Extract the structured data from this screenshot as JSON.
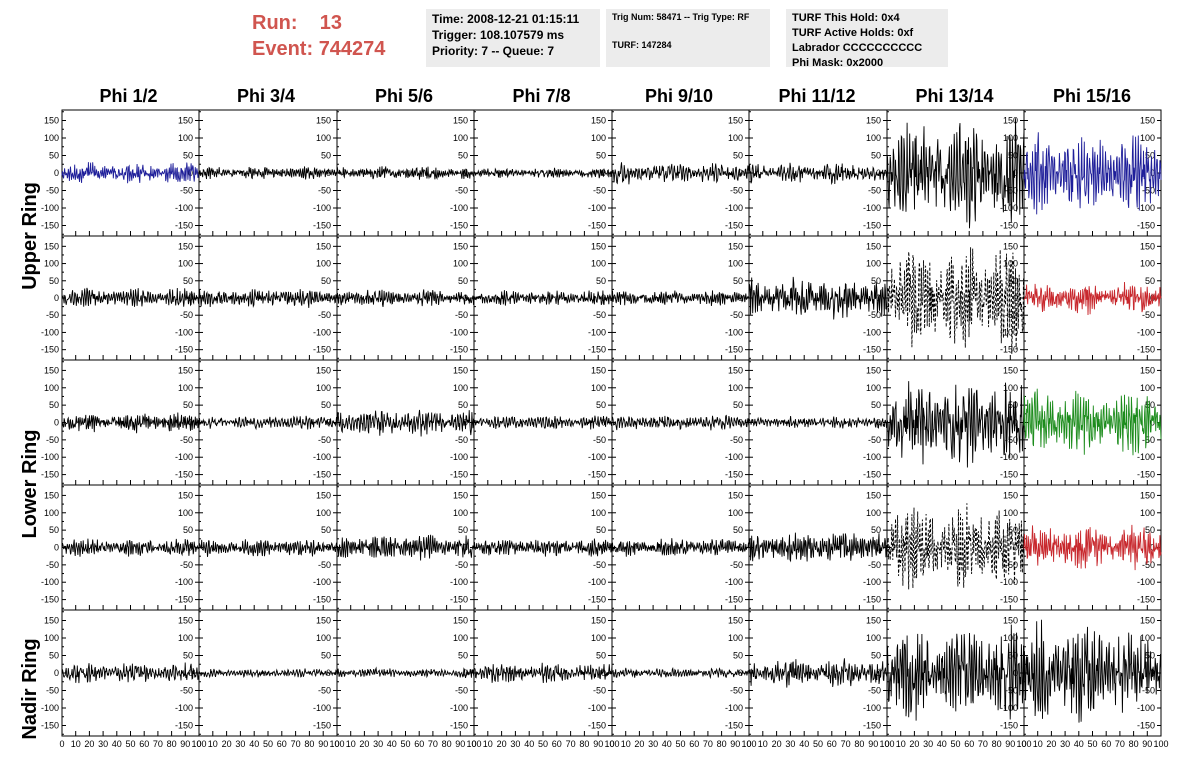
{
  "header": {
    "run_label": "Run:",
    "run_value": "13",
    "event_label": "Event:",
    "event_value": "744274",
    "run_color": "#d0554f"
  },
  "info_time": {
    "line1": "Time: 2008-12-21 01:15:11",
    "line2": "Trigger: 108.107579 ms",
    "line3": "Priority: 7 -- Queue: 7"
  },
  "info_trig": {
    "line1": "Trig Num: 58471 -- Trig Type: RF",
    "line2": "TURF: 147284"
  },
  "info_turf": {
    "line1": "TURF This Hold: 0x4",
    "line2": "TURF Active Holds: 0xf",
    "line3": "Labrador CCCCCCCCCC",
    "line4": "Phi Mask: 0x2000"
  },
  "columns": [
    "Phi 1/2",
    "Phi 3/4",
    "Phi 5/6",
    "Phi 7/8",
    "Phi 9/10",
    "Phi 11/12",
    "Phi 13/14",
    "Phi 15/16"
  ],
  "rows": [
    "Upper Ring",
    "Lower Ring",
    "Nadir Ring"
  ],
  "chart_data": {
    "type": "line",
    "ylim": [
      -180,
      180
    ],
    "xlim": [
      0,
      100
    ],
    "y_ticks": [
      -150,
      -100,
      -50,
      0,
      50,
      100,
      150
    ],
    "x_ticks": [
      0,
      10,
      20,
      30,
      40,
      50,
      60,
      70,
      80,
      90,
      100
    ],
    "x_tick_labels": [
      "0",
      "10",
      "20",
      "30",
      "40",
      "50",
      "60",
      "70",
      "80",
      "90",
      "100"
    ],
    "y_tick_labels": [
      "-150",
      "-100",
      "-50",
      "0",
      "50",
      "100",
      "150"
    ],
    "colors": {
      "black": "#000000",
      "blue": "#1f1f9a",
      "red": "#c8282d",
      "green": "#1c8c1c"
    },
    "panels": [
      {
        "row": 0,
        "col": 0,
        "color": "blue",
        "amplitude": 30,
        "style": "solid"
      },
      {
        "row": 0,
        "col": 1,
        "color": "black",
        "amplitude": 18,
        "style": "solid"
      },
      {
        "row": 0,
        "col": 2,
        "color": "black",
        "amplitude": 18,
        "style": "solid"
      },
      {
        "row": 0,
        "col": 3,
        "color": "black",
        "amplitude": 14,
        "style": "solid"
      },
      {
        "row": 0,
        "col": 4,
        "color": "black",
        "amplitude": 30,
        "style": "solid"
      },
      {
        "row": 0,
        "col": 5,
        "color": "black",
        "amplitude": 30,
        "style": "solid"
      },
      {
        "row": 0,
        "col": 6,
        "color": "black",
        "amplitude": 150,
        "style": "solid"
      },
      {
        "row": 0,
        "col": 7,
        "color": "blue",
        "amplitude": 110,
        "style": "solid"
      },
      {
        "row": 1,
        "col": 0,
        "color": "black",
        "amplitude": 28,
        "style": "solid"
      },
      {
        "row": 1,
        "col": 1,
        "color": "black",
        "amplitude": 28,
        "style": "solid"
      },
      {
        "row": 1,
        "col": 2,
        "color": "black",
        "amplitude": 25,
        "style": "solid"
      },
      {
        "row": 1,
        "col": 3,
        "color": "black",
        "amplitude": 22,
        "style": "solid"
      },
      {
        "row": 1,
        "col": 4,
        "color": "black",
        "amplitude": 22,
        "style": "solid"
      },
      {
        "row": 1,
        "col": 5,
        "color": "black",
        "amplitude": 60,
        "style": "solid"
      },
      {
        "row": 1,
        "col": 6,
        "color": "black",
        "amplitude": 150,
        "style": "dashed"
      },
      {
        "row": 1,
        "col": 7,
        "color": "red",
        "amplitude": 45,
        "style": "solid"
      },
      {
        "row": 2,
        "col": 0,
        "color": "black",
        "amplitude": 28,
        "style": "solid"
      },
      {
        "row": 2,
        "col": 1,
        "color": "black",
        "amplitude": 20,
        "style": "solid"
      },
      {
        "row": 2,
        "col": 2,
        "color": "black",
        "amplitude": 38,
        "style": "solid"
      },
      {
        "row": 2,
        "col": 3,
        "color": "black",
        "amplitude": 20,
        "style": "solid"
      },
      {
        "row": 2,
        "col": 4,
        "color": "black",
        "amplitude": 22,
        "style": "solid"
      },
      {
        "row": 2,
        "col": 5,
        "color": "black",
        "amplitude": 18,
        "style": "solid"
      },
      {
        "row": 2,
        "col": 6,
        "color": "black",
        "amplitude": 120,
        "style": "solid"
      },
      {
        "row": 2,
        "col": 7,
        "color": "green",
        "amplitude": 95,
        "style": "solid"
      },
      {
        "row": 3,
        "col": 0,
        "color": "black",
        "amplitude": 25,
        "style": "solid"
      },
      {
        "row": 3,
        "col": 1,
        "color": "black",
        "amplitude": 25,
        "style": "solid"
      },
      {
        "row": 3,
        "col": 2,
        "color": "black",
        "amplitude": 35,
        "style": "solid"
      },
      {
        "row": 3,
        "col": 3,
        "color": "black",
        "amplitude": 25,
        "style": "solid"
      },
      {
        "row": 3,
        "col": 4,
        "color": "black",
        "amplitude": 25,
        "style": "solid"
      },
      {
        "row": 3,
        "col": 5,
        "color": "black",
        "amplitude": 45,
        "style": "solid"
      },
      {
        "row": 3,
        "col": 6,
        "color": "black",
        "amplitude": 120,
        "style": "dashed"
      },
      {
        "row": 3,
        "col": 7,
        "color": "red",
        "amplitude": 60,
        "style": "solid"
      },
      {
        "row": 4,
        "col": 0,
        "color": "black",
        "amplitude": 28,
        "style": "solid"
      },
      {
        "row": 4,
        "col": 1,
        "color": "black",
        "amplitude": 12,
        "style": "solid"
      },
      {
        "row": 4,
        "col": 2,
        "color": "black",
        "amplitude": 14,
        "style": "solid"
      },
      {
        "row": 4,
        "col": 3,
        "color": "black",
        "amplitude": 28,
        "style": "solid"
      },
      {
        "row": 4,
        "col": 4,
        "color": "black",
        "amplitude": 14,
        "style": "solid"
      },
      {
        "row": 4,
        "col": 5,
        "color": "black",
        "amplitude": 40,
        "style": "solid"
      },
      {
        "row": 4,
        "col": 6,
        "color": "black",
        "amplitude": 130,
        "style": "solid"
      },
      {
        "row": 4,
        "col": 7,
        "color": "black",
        "amplitude": 140,
        "style": "solid"
      }
    ]
  }
}
